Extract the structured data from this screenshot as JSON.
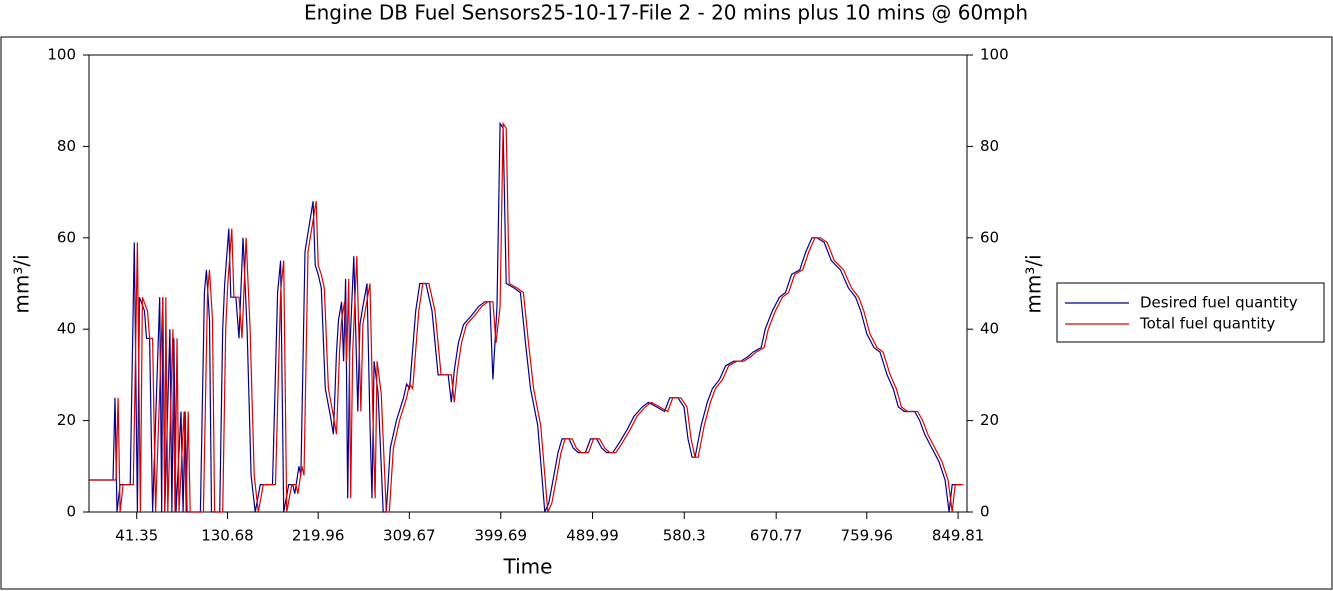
{
  "chart_data": {
    "type": "line",
    "title": "Engine DB   Fuel Sensors25-10-17-File 2 - 20 mins plus 10 mins @ 60mph",
    "xlabel": "Time",
    "ylabel": "mm³/i",
    "y2label": "mm³/i",
    "xlim": [
      -5.6,
      858.6
    ],
    "xticks": [
      41.35,
      130.68,
      219.96,
      309.67,
      399.69,
      489.99,
      580.3,
      670.77,
      759.96,
      849.81
    ],
    "ylim": [
      0,
      100
    ],
    "yticks": [
      0,
      20,
      40,
      60,
      80,
      100
    ],
    "y2lim": [
      0,
      100
    ],
    "y2ticks": [
      0,
      20,
      40,
      60,
      80,
      100
    ],
    "legend": "right",
    "series": [
      {
        "name": "Desired fuel quantity",
        "color": "#00008b",
        "x": [
          -5,
          18,
          20,
          22,
          25,
          35,
          39,
          42,
          44,
          49,
          51,
          54,
          57,
          64,
          66,
          67,
          69,
          74,
          76,
          78,
          80,
          85,
          87,
          89,
          91,
          104,
          108,
          110,
          113,
          115,
          123,
          126,
          128,
          132,
          134,
          139,
          142,
          146,
          150,
          154,
          158,
          163,
          175,
          180,
          183,
          186,
          191,
          195,
          197,
          201,
          203,
          207,
          215,
          217,
          220,
          223,
          227,
          232,
          235,
          238,
          240,
          243,
          245,
          247,
          249,
          251,
          255,
          259,
          261,
          264,
          268,
          271,
          273,
          275,
          279,
          284,
          287,
          291,
          297,
          304,
          307,
          310,
          316,
          320,
          326,
          332,
          338,
          348,
          351,
          354,
          358,
          363,
          371,
          378,
          384,
          389,
          392,
          396,
          399,
          402,
          405,
          413,
          419,
          424,
          429,
          436,
          439,
          443,
          447,
          452,
          456,
          460,
          467,
          471,
          476,
          483,
          488,
          494,
          499,
          504,
          510,
          516,
          524,
          531,
          539,
          545,
          553,
          561,
          566,
          574,
          580,
          584,
          588,
          591,
          597,
          603,
          608,
          615,
          621,
          629,
          636,
          643,
          648,
          656,
          660,
          667,
          674,
          680,
          686,
          694,
          700,
          706,
          711,
          718,
          725,
          734,
          742,
          749,
          754,
          760,
          767,
          773,
          780,
          786,
          791,
          797,
          803,
          807,
          812,
          817,
          824,
          831,
          837,
          841,
          844,
          852
        ],
        "values": [
          7,
          7,
          25,
          0,
          6,
          6,
          59,
          0,
          47,
          44,
          38,
          38,
          0,
          47,
          0,
          47,
          0,
          40,
          0,
          38,
          0,
          22,
          0,
          22,
          0,
          0,
          48,
          53,
          42,
          0,
          0,
          40,
          50,
          62,
          47,
          47,
          38,
          60,
          40,
          8,
          0,
          6,
          6,
          48,
          55,
          0,
          6,
          6,
          4,
          10,
          8,
          57,
          68,
          54,
          52,
          49,
          27,
          21,
          17,
          35,
          42,
          46,
          33,
          51,
          3,
          35,
          56,
          22,
          41,
          45,
          50,
          19,
          3,
          33,
          26,
          0,
          0,
          14,
          20,
          25,
          28,
          27,
          44,
          50,
          50,
          44,
          30,
          30,
          24,
          31,
          37,
          41,
          43,
          45,
          46,
          46,
          29,
          45,
          85,
          84,
          50,
          49,
          48,
          37,
          27,
          19,
          11,
          0,
          2,
          8,
          13,
          16,
          16,
          14,
          13,
          13,
          16,
          16,
          14,
          13,
          13,
          15,
          18,
          21,
          23,
          24,
          23,
          22,
          25,
          25,
          23,
          16,
          12,
          12,
          19,
          24,
          27,
          29,
          32,
          33,
          33,
          34,
          35,
          36,
          40,
          44,
          47,
          48,
          52,
          53,
          57,
          60,
          60,
          59,
          55,
          53,
          49,
          47,
          44,
          39,
          36,
          35,
          30,
          27,
          23,
          22,
          22,
          22,
          20,
          17,
          14,
          11,
          7,
          0,
          6,
          6
        ]
      },
      {
        "name": "Total fuel quantity",
        "color": "#e00000",
        "x": [
          -5,
          21,
          23,
          25,
          28,
          38,
          42,
          45,
          47,
          52,
          54,
          57,
          60,
          67,
          69,
          70,
          72,
          77,
          79,
          81,
          83,
          88,
          90,
          92,
          94,
          107,
          111,
          113,
          116,
          118,
          126,
          129,
          131,
          135,
          137,
          142,
          145,
          149,
          153,
          157,
          161,
          166,
          178,
          183,
          186,
          189,
          194,
          198,
          200,
          204,
          206,
          210,
          218,
          220,
          223,
          226,
          230,
          235,
          238,
          241,
          243,
          246,
          248,
          250,
          252,
          254,
          258,
          262,
          264,
          267,
          271,
          274,
          276,
          278,
          282,
          287,
          290,
          294,
          300,
          307,
          310,
          313,
          319,
          323,
          329,
          335,
          341,
          351,
          354,
          357,
          361,
          366,
          374,
          381,
          387,
          392,
          395,
          399,
          402,
          405,
          408,
          416,
          422,
          427,
          432,
          439,
          442,
          446,
          450,
          455,
          459,
          463,
          470,
          474,
          479,
          486,
          491,
          497,
          502,
          507,
          513,
          519,
          527,
          534,
          542,
          548,
          556,
          564,
          569,
          577,
          583,
          587,
          591,
          594,
          600,
          606,
          611,
          618,
          624,
          632,
          639,
          646,
          651,
          659,
          663,
          670,
          677,
          683,
          689,
          697,
          703,
          709,
          714,
          721,
          728,
          737,
          745,
          752,
          757,
          763,
          770,
          776,
          783,
          789,
          794,
          800,
          806,
          810,
          815,
          820,
          827,
          834,
          840,
          844,
          847,
          855
        ],
        "values": [
          7,
          7,
          25,
          0,
          6,
          6,
          59,
          0,
          47,
          44,
          38,
          38,
          0,
          47,
          0,
          47,
          0,
          40,
          0,
          38,
          0,
          22,
          0,
          22,
          0,
          0,
          48,
          53,
          42,
          0,
          0,
          40,
          50,
          62,
          47,
          47,
          38,
          60,
          40,
          8,
          0,
          6,
          6,
          48,
          55,
          0,
          6,
          6,
          4,
          10,
          8,
          57,
          68,
          54,
          52,
          49,
          27,
          21,
          17,
          35,
          42,
          46,
          33,
          51,
          3,
          35,
          56,
          22,
          41,
          45,
          50,
          19,
          3,
          33,
          26,
          0,
          0,
          14,
          20,
          25,
          28,
          27,
          44,
          50,
          50,
          44,
          30,
          30,
          24,
          31,
          37,
          41,
          43,
          45,
          46,
          46,
          37,
          45,
          85,
          84,
          50,
          49,
          48,
          37,
          27,
          19,
          11,
          0,
          2,
          8,
          13,
          16,
          16,
          14,
          13,
          13,
          16,
          16,
          14,
          13,
          13,
          15,
          18,
          21,
          23,
          24,
          23,
          22,
          25,
          25,
          23,
          16,
          12,
          12,
          19,
          24,
          27,
          29,
          32,
          33,
          33,
          34,
          35,
          36,
          40,
          44,
          47,
          48,
          52,
          53,
          57,
          60,
          60,
          59,
          55,
          53,
          49,
          47,
          44,
          39,
          36,
          35,
          30,
          27,
          23,
          22,
          22,
          22,
          20,
          17,
          14,
          11,
          7,
          0,
          6,
          6
        ]
      }
    ]
  }
}
